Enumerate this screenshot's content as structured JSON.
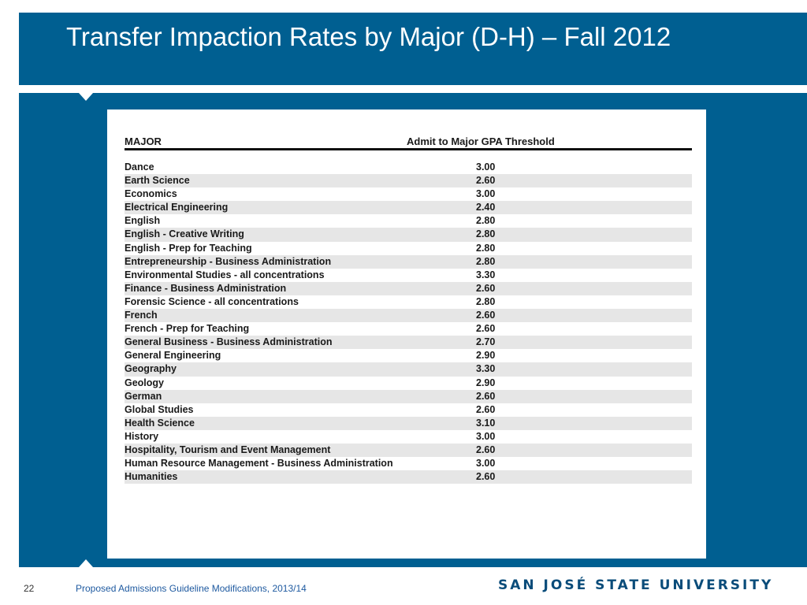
{
  "slide": {
    "title": "Transfer Impaction Rates by Major (D-H) – Fall 2012"
  },
  "table": {
    "headers": {
      "major": "MAJOR",
      "gpa": "Admit to Major GPA Threshold"
    },
    "rows": [
      {
        "major": "Dance",
        "gpa": "3.00"
      },
      {
        "major": "Earth Science",
        "gpa": "2.60"
      },
      {
        "major": "Economics",
        "gpa": "3.00"
      },
      {
        "major": "Electrical Engineering",
        "gpa": "2.40"
      },
      {
        "major": "English",
        "gpa": "2.80"
      },
      {
        "major": "English - Creative Writing",
        "gpa": "2.80"
      },
      {
        "major": "English - Prep for Teaching",
        "gpa": "2.80"
      },
      {
        "major": "Entrepreneurship - Business Administration",
        "gpa": "2.80"
      },
      {
        "major": "Environmental Studies - all concentrations",
        "gpa": "3.30"
      },
      {
        "major": "Finance - Business Administration",
        "gpa": "2.60"
      },
      {
        "major": "Forensic Science - all concentrations",
        "gpa": "2.80"
      },
      {
        "major": "French",
        "gpa": "2.60"
      },
      {
        "major": "French - Prep for Teaching",
        "gpa": "2.60"
      },
      {
        "major": "General Business - Business Administration",
        "gpa": "2.70"
      },
      {
        "major": "General Engineering",
        "gpa": "2.90"
      },
      {
        "major": "Geography",
        "gpa": "3.30"
      },
      {
        "major": "Geology",
        "gpa": "2.90"
      },
      {
        "major": "German",
        "gpa": "2.60"
      },
      {
        "major": "Global Studies",
        "gpa": "2.60"
      },
      {
        "major": "Health Science",
        "gpa": "3.10"
      },
      {
        "major": "History",
        "gpa": "3.00"
      },
      {
        "major": "Hospitality, Tourism and Event Management",
        "gpa": "2.60"
      },
      {
        "major": "Human Resource Management - Business Administration",
        "gpa": "3.00"
      },
      {
        "major": "Humanities",
        "gpa": "2.60"
      }
    ]
  },
  "footer": {
    "page_number": "22",
    "text": "Proposed Admissions Guideline Modifications, 2013/14",
    "logo": "SAN JOSÉ STATE UNIVERSITY"
  },
  "colors": {
    "brand_blue": "#005f91",
    "stripe": "#e6e6e6",
    "footer_link": "#1f5aa0"
  }
}
